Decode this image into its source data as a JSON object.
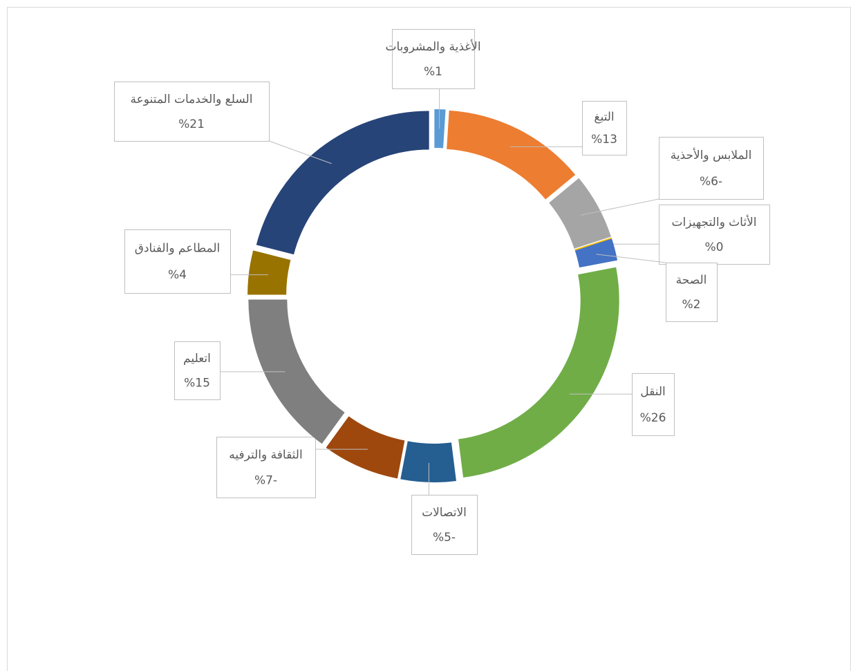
{
  "chart_data": {
    "type": "donut",
    "categories": [
      "الأغذية والمشروبات",
      "التبغ",
      "الملابس والأحذية",
      "الأثاث والتجهيزات",
      "الصحة",
      "النقل",
      "الاتصالات",
      "الثقافة والترفيه",
      "اتعليم",
      "المطاعم والفنادق",
      "السلع والخدمات المتنوعة"
    ],
    "values": [
      1,
      13,
      -6,
      0,
      2,
      26,
      -5,
      -7,
      15,
      4,
      21
    ],
    "value_labels": [
      "%1",
      "%13",
      "%6-",
      "%0",
      "%2",
      "%26",
      "%5-",
      "%7-",
      "%15",
      "%4",
      "%21"
    ],
    "colors": [
      "#5b9bd5",
      "#ed7d31",
      "#a5a5a5",
      "#ffc000",
      "#4472c4",
      "#70ad47",
      "#255e91",
      "#9e480e",
      "#7f7f7f",
      "#997300",
      "#264478"
    ]
  }
}
